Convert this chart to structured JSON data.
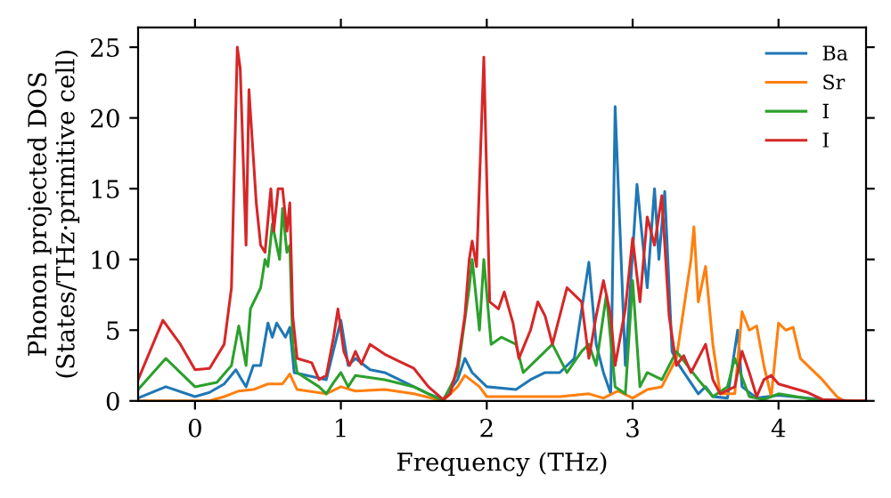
{
  "chart_data": {
    "type": "line",
    "xlabel": "Frequency (THz)",
    "ylabel": "Phonon projected DOS\n(States/THz·primitive cell)",
    "xlim": [
      -0.39,
      4.6
    ],
    "ylim": [
      0,
      26.4
    ],
    "xticks": [
      0,
      1,
      2,
      3,
      4
    ],
    "yticks": [
      0,
      5,
      10,
      15,
      20,
      25
    ],
    "grid": false,
    "legend": "top right",
    "marker": "none",
    "line_style": "solid",
    "series": [
      {
        "name": "Ba",
        "color": "#1f77b4",
        "x": [
          -0.39,
          -0.2,
          0,
          0.1,
          0.2,
          0.28,
          0.32,
          0.35,
          0.4,
          0.45,
          0.5,
          0.53,
          0.56,
          0.62,
          0.65,
          0.68,
          0.9,
          1.0,
          1.05,
          1.1,
          1.2,
          1.3,
          1.4,
          1.6,
          1.7,
          1.8,
          1.85,
          1.9,
          2.0,
          2.2,
          2.3,
          2.4,
          2.5,
          2.6,
          2.7,
          2.75,
          2.8,
          2.85,
          2.88,
          2.95,
          3.03,
          3.1,
          3.15,
          3.18,
          3.22,
          3.27,
          3.3,
          3.45,
          3.5,
          3.55,
          3.65,
          3.72,
          3.75,
          3.85,
          4.0,
          4.3,
          4.5
        ],
        "values": [
          0.2,
          1,
          0.3,
          0.6,
          1.2,
          2.2,
          1.5,
          1,
          2.5,
          2.5,
          5.5,
          4.5,
          5.5,
          4.5,
          5.2,
          2,
          1.5,
          5.7,
          2.5,
          3,
          2.2,
          2,
          1.5,
          0.5,
          0.1,
          1.5,
          3,
          2,
          1,
          0.8,
          1.5,
          2,
          2,
          3,
          9.8,
          4,
          2,
          0.5,
          20.8,
          2.5,
          15.3,
          8,
          15,
          10,
          14.8,
          3.5,
          2.8,
          0.5,
          1,
          0.3,
          0.2,
          5,
          1,
          0.2,
          0.4,
          0.1,
          0
        ]
      },
      {
        "name": "Sr",
        "color": "#ff7f0e",
        "x": [
          -0.39,
          0.1,
          0.2,
          0.3,
          0.4,
          0.5,
          0.6,
          0.65,
          0.7,
          0.9,
          1.0,
          1.1,
          1.3,
          1.5,
          1.7,
          1.8,
          1.85,
          1.95,
          2.0,
          2.3,
          2.5,
          2.7,
          2.8,
          2.9,
          3.0,
          3.1,
          3.2,
          3.3,
          3.4,
          3.42,
          3.45,
          3.5,
          3.55,
          3.6,
          3.7,
          3.75,
          3.8,
          3.85,
          3.9,
          3.95,
          4.0,
          4.05,
          4.1,
          4.15,
          4.3,
          4.4,
          4.45,
          4.6
        ],
        "values": [
          0,
          0,
          0.3,
          0.7,
          0.8,
          1.2,
          1.2,
          1.9,
          0.8,
          0.5,
          1,
          0.7,
          0.8,
          0.5,
          0,
          1,
          1.8,
          1,
          0.3,
          0.3,
          0.3,
          0.5,
          0.2,
          0.7,
          0.2,
          0.8,
          1,
          3,
          10,
          12.3,
          7,
          9.5,
          4,
          0.5,
          0.5,
          6.3,
          5,
          5.3,
          2.5,
          0.3,
          5.5,
          5,
          5.2,
          3,
          1.5,
          0.3,
          0,
          0
        ]
      },
      {
        "name": "I",
        "color": "#2ca02c",
        "x": [
          -0.39,
          -0.2,
          0,
          0.15,
          0.25,
          0.3,
          0.35,
          0.38,
          0.45,
          0.48,
          0.5,
          0.53,
          0.58,
          0.6,
          0.63,
          0.65,
          0.67,
          0.7,
          0.85,
          0.9,
          0.95,
          1.0,
          1.05,
          1.1,
          1.3,
          1.5,
          1.6,
          1.7,
          1.8,
          1.88,
          1.9,
          1.95,
          1.98,
          2.03,
          2.1,
          2.2,
          2.25,
          2.35,
          2.45,
          2.55,
          2.65,
          2.7,
          2.75,
          2.82,
          2.88,
          2.95,
          3.0,
          3.05,
          3.1,
          3.2,
          3.3,
          3.45,
          3.55,
          3.65,
          3.7,
          3.8,
          3.9,
          4.0,
          4.3,
          4.5
        ],
        "values": [
          0.8,
          3,
          1,
          1.3,
          2.5,
          5.3,
          2.5,
          6.5,
          8,
          10,
          9.5,
          12.5,
          10,
          13.6,
          10.5,
          11,
          4,
          2,
          1,
          0.5,
          1.3,
          2,
          1,
          1.8,
          1.5,
          1,
          0.5,
          0,
          2,
          8,
          10,
          5,
          10,
          4,
          4.5,
          4,
          2,
          3,
          4,
          2,
          3.5,
          4,
          2.5,
          7.5,
          1,
          0.5,
          8.5,
          1,
          2,
          1.5,
          3.5,
          1.5,
          0.3,
          1,
          3,
          0.3,
          0.1,
          0.5,
          0,
          0
        ]
      },
      {
        "name": "I",
        "color": "#d62728",
        "x": [
          -0.39,
          -0.22,
          -0.1,
          0,
          0.1,
          0.2,
          0.25,
          0.29,
          0.31,
          0.35,
          0.37,
          0.42,
          0.45,
          0.48,
          0.52,
          0.54,
          0.57,
          0.6,
          0.63,
          0.65,
          0.67,
          0.7,
          0.8,
          0.85,
          0.9,
          0.95,
          0.98,
          1.02,
          1.06,
          1.1,
          1.14,
          1.2,
          1.3,
          1.4,
          1.5,
          1.6,
          1.7,
          1.75,
          1.8,
          1.85,
          1.88,
          1.9,
          1.93,
          1.98,
          2.02,
          2.08,
          2.12,
          2.18,
          2.22,
          2.3,
          2.35,
          2.4,
          2.45,
          2.5,
          2.55,
          2.65,
          2.7,
          2.75,
          2.8,
          2.85,
          2.88,
          2.95,
          3.0,
          3.05,
          3.1,
          3.15,
          3.2,
          3.25,
          3.3,
          3.35,
          3.4,
          3.45,
          3.5,
          3.55,
          3.6,
          3.7,
          3.75,
          3.8,
          3.85,
          3.9,
          3.95,
          4.0,
          4.2,
          4.3,
          4.5,
          4.6
        ],
        "values": [
          1.5,
          5.7,
          4,
          2.2,
          2.3,
          4,
          8,
          25,
          23.5,
          11,
          22,
          14,
          11,
          10.5,
          15,
          12,
          15,
          15,
          12,
          14,
          6,
          3,
          2.7,
          1.5,
          1.8,
          4.5,
          6.5,
          3.5,
          2.5,
          3.5,
          2.6,
          4,
          3.3,
          2.8,
          2.3,
          1,
          0.1,
          0.5,
          2.5,
          6,
          10,
          11.3,
          9.5,
          24.3,
          7,
          6.5,
          7.7,
          5.5,
          3,
          5,
          7,
          6,
          4,
          6,
          8,
          7,
          3,
          6,
          8.5,
          6,
          2.5,
          6.5,
          11.5,
          7,
          13,
          11,
          14.5,
          6,
          2.5,
          3.2,
          2,
          3,
          4,
          1.5,
          0.5,
          1,
          3.5,
          2,
          0.3,
          1.5,
          1.8,
          1.2,
          0.6,
          0.1,
          0,
          0
        ]
      }
    ]
  }
}
